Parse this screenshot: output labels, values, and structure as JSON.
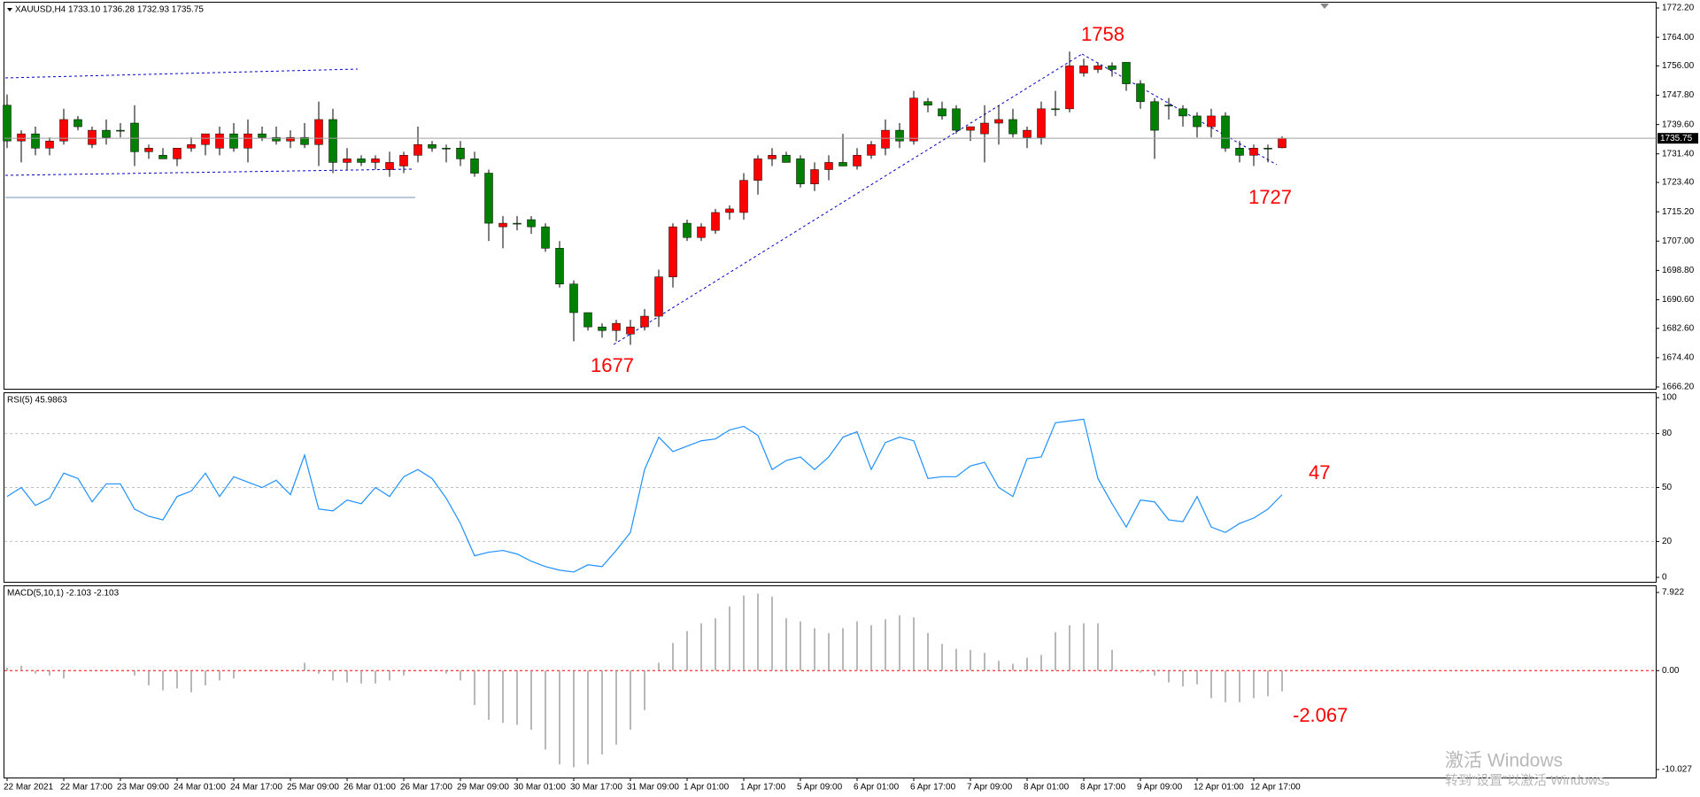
{
  "chart_data": [
    {
      "type": "candlestick",
      "title": "XAUUSD,H4  1733.10 1736.28 1732.93 1735.75",
      "categories": [
        "22 Mar 2021",
        null,
        null,
        null,
        "22 Mar 17:00",
        null,
        null,
        null,
        "23 Mar 09:00",
        null,
        null,
        null,
        "24 Mar 01:00",
        null,
        null,
        null,
        "24 Mar 17:00",
        null,
        null,
        null,
        "25 Mar 09:00",
        null,
        null,
        null,
        "26 Mar 01:00",
        null,
        null,
        null,
        "26 Mar 17:00",
        null,
        null,
        null,
        "29 Mar 09:00",
        null,
        null,
        null,
        "30 Mar 01:00",
        null,
        null,
        null,
        "30 Mar 17:00",
        null,
        null,
        null,
        "31 Mar 09:00",
        null,
        null,
        null,
        "1 Apr 01:00",
        null,
        null,
        null,
        "1 Apr 17:00",
        null,
        null,
        null,
        "5 Apr 09:00",
        null,
        null,
        null,
        "6 Apr 01:00",
        null,
        null,
        null,
        "6 Apr 17:00",
        null,
        null,
        null,
        "7 Apr 09:00",
        null,
        null,
        null,
        "8 Apr 01:00",
        null,
        null,
        null,
        "8 Apr 17:00",
        null,
        null,
        null,
        "9 Apr 09:00",
        null,
        null,
        null,
        "12 Apr 01:00",
        null,
        null,
        null,
        "12 Apr 17:00",
        null,
        null
      ],
      "open": [
        1745,
        1735,
        1737,
        1733,
        1735,
        1741,
        1734,
        1738,
        1738,
        1740,
        1732,
        1731,
        1730,
        1733,
        1734,
        1733,
        1737,
        1733,
        1737,
        1736,
        1735,
        1736,
        1734,
        1741,
        1729,
        1730,
        1729,
        1727,
        1728,
        1731,
        1734,
        1733,
        1733,
        1730,
        1726,
        1711,
        1712,
        1713,
        1711,
        1705,
        1695,
        1687,
        1683,
        1682,
        1681,
        1683,
        1686,
        1697,
        1712,
        1708,
        1710,
        1715,
        1715,
        1724,
        1730,
        1731,
        1730,
        1723,
        1727,
        1729,
        1728,
        1731,
        1733,
        1738,
        1735,
        1746,
        1744,
        1744,
        1738,
        1737,
        1740,
        1741,
        1736,
        1736,
        1744,
        1744,
        1754,
        1755,
        1756,
        1757,
        1751,
        1746,
        1745,
        1744,
        1742,
        1739,
        1742,
        1733,
        1731,
        1733,
        1733.1
      ],
      "high": [
        1748,
        1738,
        1739,
        1736,
        1744,
        1742,
        1739,
        1741,
        1740,
        1745,
        1734,
        1733,
        1733,
        1736,
        1737,
        1739,
        1740,
        1741,
        1739,
        1739,
        1738,
        1740,
        1746,
        1744,
        1733,
        1731,
        1731,
        1732,
        1732,
        1739,
        1735,
        1734,
        1735,
        1732,
        1727,
        1714,
        1714,
        1714,
        1712,
        1707,
        1696,
        1687,
        1684,
        1685,
        1685,
        1688,
        1699,
        1712,
        1713,
        1712,
        1716,
        1717,
        1726,
        1731,
        1733,
        1732,
        1731,
        1729,
        1731,
        1737,
        1733,
        1735,
        1741,
        1740,
        1749,
        1747,
        1746,
        1745,
        1739,
        1745,
        1745,
        1744,
        1739,
        1746,
        1749,
        1760,
        1758,
        1757,
        1757,
        1757,
        1752,
        1747,
        1747,
        1745,
        1743,
        1744,
        1743,
        1735,
        1734,
        1734,
        1736.28
      ],
      "low": [
        1733,
        1729,
        1731,
        1731,
        1734,
        1738,
        1733,
        1734,
        1736,
        1728,
        1730,
        1730,
        1728,
        1732,
        1731,
        1731,
        1732,
        1729,
        1735,
        1734,
        1733,
        1733,
        1728,
        1726,
        1727,
        1728,
        1727,
        1725,
        1726,
        1729,
        1732,
        1729,
        1728,
        1725,
        1707,
        1705,
        1710,
        1709,
        1704,
        1694,
        1679,
        1682,
        1680,
        1679,
        1678,
        1682,
        1683,
        1694,
        1707,
        1707,
        1709,
        1713,
        1713,
        1720,
        1728,
        1729,
        1722,
        1721,
        1724,
        1728,
        1727,
        1730,
        1731,
        1733,
        1734,
        1743,
        1741,
        1737,
        1735,
        1729,
        1734,
        1736,
        1733,
        1734,
        1742,
        1743,
        1753,
        1754,
        1753,
        1749,
        1744,
        1730,
        1741,
        1739,
        1736,
        1736,
        1732,
        1729,
        1728,
        1729,
        1732.93
      ],
      "close": [
        1735,
        1737,
        1733,
        1735,
        1741,
        1739,
        1738,
        1736,
        1738,
        1732,
        1733,
        1730,
        1733,
        1734,
        1737,
        1737,
        1733,
        1737,
        1736,
        1735,
        1736,
        1734,
        1741,
        1729,
        1730,
        1729,
        1730,
        1729,
        1731,
        1734,
        1733,
        1733,
        1730,
        1726,
        1712,
        1712,
        1712,
        1711,
        1705,
        1695,
        1687,
        1683,
        1682,
        1684,
        1683,
        1686,
        1697,
        1711,
        1708,
        1711,
        1715,
        1716,
        1724,
        1730,
        1731,
        1729,
        1723,
        1727,
        1729,
        1728,
        1731,
        1734,
        1738,
        1735,
        1747,
        1745,
        1742,
        1738,
        1739,
        1740,
        1741,
        1737,
        1738,
        1744,
        1744,
        1756,
        1756,
        1756,
        1755,
        1751,
        1746,
        1738,
        1745,
        1742,
        1739,
        1742,
        1733,
        1731,
        1733,
        1733,
        1735.75
      ],
      "up_color": "#ff0000",
      "down_color": "#008000",
      "price_line": true,
      "grid": false,
      "ylim": [
        1666.2,
        1772.2
      ],
      "yticks": [
        {
          "value": 1772.2,
          "label": "1772.20"
        },
        {
          "value": 1764,
          "label": "1764.00"
        },
        {
          "value": 1756,
          "label": "1756.00"
        },
        {
          "value": 1747.8,
          "label": "1747.80"
        },
        {
          "value": 1739.6,
          "label": "1739.60"
        },
        {
          "value": 1731.4,
          "label": "1731.40"
        },
        {
          "value": 1723.4,
          "label": "1723.40"
        },
        {
          "value": 1715.2,
          "label": "1715.20"
        },
        {
          "value": 1707,
          "label": "1707.00"
        },
        {
          "value": 1698.8,
          "label": "1698.80"
        },
        {
          "value": 1690.6,
          "label": "1690.60"
        },
        {
          "value": 1682.6,
          "label": "1682.60"
        },
        {
          "value": 1674.4,
          "label": "1674.40"
        },
        {
          "value": 1666.2,
          "label": "1666.20"
        }
      ],
      "annotations": [
        "1758",
        "1727",
        "1677"
      ]
    },
    {
      "type": "line",
      "title": "RSI(5) 45.9863",
      "color": "#1e90ff",
      "values": [
        45,
        50,
        40,
        44,
        58,
        55,
        42,
        52,
        52,
        38,
        34,
        32,
        45,
        48,
        58,
        45,
        56,
        53,
        50,
        54,
        46,
        68,
        38,
        37,
        43,
        41,
        50,
        45,
        56,
        60,
        55,
        44,
        30,
        12,
        14,
        15,
        13,
        9,
        6,
        4,
        3,
        7,
        6,
        15,
        25,
        60,
        78,
        70,
        73,
        76,
        77,
        82,
        84,
        79,
        60,
        65,
        67,
        60,
        67,
        78,
        81,
        60,
        75,
        78,
        76,
        55,
        56,
        56,
        62,
        64,
        50,
        45,
        66,
        67,
        86,
        87,
        88,
        55,
        41,
        28,
        43,
        42,
        32,
        31,
        45,
        28,
        25,
        30,
        33,
        38,
        46
      ],
      "ylim": [
        0,
        100
      ],
      "yticks": [
        100,
        80,
        50,
        20,
        0
      ],
      "grid": true,
      "grid_color": "#c0c0c0",
      "annotations": [
        "47"
      ]
    },
    {
      "type": "bar",
      "title": "MACD(5,10,1) -2.103 -2.103",
      "color": "#a0a0a0",
      "values": [
        0.3,
        0.5,
        -0.3,
        -0.5,
        -0.8,
        0,
        0,
        0,
        0,
        -0.5,
        -1.5,
        -2,
        -1.8,
        -2.2,
        -1.5,
        -1,
        -0.8,
        0,
        0,
        0,
        0,
        0.8,
        -0.3,
        -1,
        -1.2,
        -1.3,
        -1.3,
        -1,
        -0.5,
        0,
        0,
        -0.3,
        -1,
        -3.5,
        -5,
        -5.3,
        -5.5,
        -6,
        -8,
        -9.5,
        -9.8,
        -9.5,
        -8.5,
        -7.5,
        -6,
        -4,
        0.8,
        2.8,
        4,
        4.8,
        5.3,
        6.5,
        7.6,
        7.8,
        7.5,
        5.3,
        5,
        4.3,
        3.8,
        4.3,
        5,
        4.6,
        5.2,
        5.6,
        5.4,
        3.8,
        2.7,
        2.2,
        2.1,
        1.8,
        1,
        0.7,
        1.3,
        1.6,
        3.9,
        4.6,
        4.8,
        4.8,
        2.1,
        0,
        -0.2,
        -0.5,
        -1.2,
        -1.6,
        -1.4,
        -2.8,
        -3.2,
        -3.2,
        -2.8,
        -2.6,
        -2.1
      ],
      "ylim": [
        -10.027,
        7.922
      ],
      "yticks": [
        7.922,
        {
          "value": 0,
          "label": "0.00"
        },
        -10.027
      ],
      "grid": true,
      "grid_color": "#ff0000",
      "annotations": [
        "-2.067"
      ]
    }
  ],
  "overlay": {
    "watermark_title": "激活 Windows",
    "watermark_text": "转到“设置”以激活 Windows。"
  }
}
